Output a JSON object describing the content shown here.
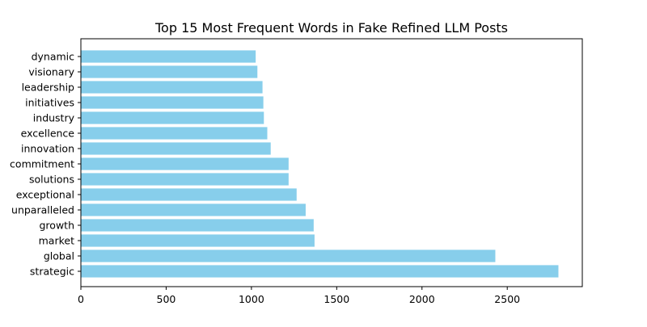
{
  "chart_data": {
    "type": "bar",
    "orientation": "horizontal",
    "title": "Top 15 Most Frequent Words in Fake Refined LLM Posts",
    "xlabel": "",
    "ylabel": "",
    "categories": [
      "strategic",
      "global",
      "market",
      "growth",
      "unparalleled",
      "exceptional",
      "solutions",
      "commitment",
      "innovation",
      "excellence",
      "industry",
      "initiatives",
      "leadership",
      "visionary",
      "dynamic"
    ],
    "values": [
      2800,
      2430,
      1370,
      1365,
      1318,
      1265,
      1218,
      1218,
      1113,
      1093,
      1073,
      1070,
      1065,
      1035,
      1025
    ],
    "xlim": [
      0,
      2940
    ],
    "xticks": [
      0,
      500,
      1000,
      1500,
      2000,
      2500
    ],
    "bar_color": "#87ceeb",
    "grid": false,
    "legend": "none"
  }
}
